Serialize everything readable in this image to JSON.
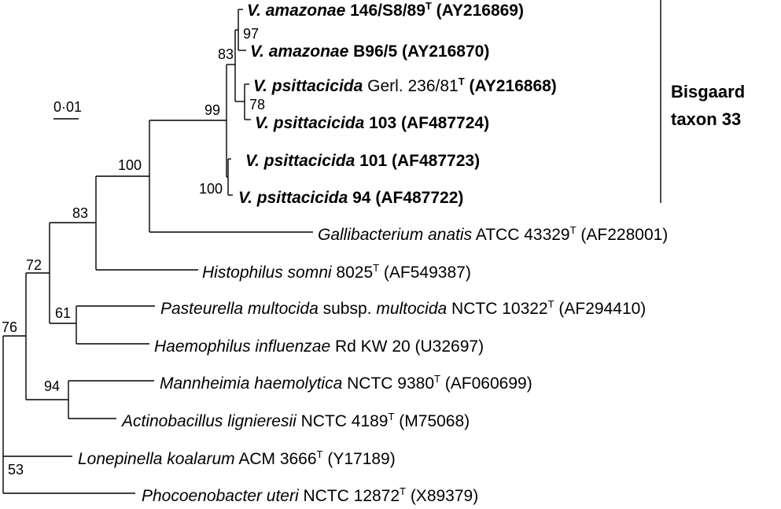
{
  "scale_bar": {
    "label": "0·01"
  },
  "clade": {
    "line1": "Bisgaard",
    "line2": "taxon 33"
  },
  "taxa": [
    {
      "id": "t1",
      "genus_species": "V. amazonae",
      "strain": " 146/S8/89",
      "sup": "T",
      "accession": " (AY216869)",
      "bold": true
    },
    {
      "id": "t2",
      "genus_species": "V. amazonae",
      "strain": " B96/5",
      "sup": "",
      "accession": " (AY216870)",
      "bold": true
    },
    {
      "id": "t3",
      "genus_species": "V. psittacicida",
      "strain": " Gerl. 236/81",
      "sup": "T",
      "accession": " (AY216868)",
      "bold": true,
      "strain_regular": true
    },
    {
      "id": "t4",
      "genus_species": "V. psittacicida",
      "strain": " 103",
      "sup": "",
      "accession": " (AF487724)",
      "bold": true
    },
    {
      "id": "t5",
      "genus_species": "V. psittacicida",
      "strain": " 101",
      "sup": "",
      "accession": " (AF487723)",
      "bold": true
    },
    {
      "id": "t6",
      "genus_species": "V. psittacicida",
      "strain": " 94",
      "sup": "",
      "accession": " (AF487722)",
      "bold": true
    },
    {
      "id": "t7",
      "genus_species": "Gallibacterium anatis",
      "strain": " ATCC 43329",
      "sup": "T",
      "accession": " (AF228001)",
      "bold": false
    },
    {
      "id": "t8",
      "genus_species": "Histophilus somni",
      "strain": " 8025",
      "sup": "T",
      "accession": " (AF549387)",
      "bold": false
    },
    {
      "id": "t9",
      "genus_species": "Pasteurella multocida",
      "strain": " subsp. ",
      "strain_italic": "multocida",
      "strain2": " NCTC 10322",
      "sup": "T",
      "accession": " (AF294410)",
      "bold": false
    },
    {
      "id": "t10",
      "genus_species": "Haemophilus influenzae",
      "strain": " Rd KW 20",
      "sup": "",
      "accession": " (U32697)",
      "bold": false
    },
    {
      "id": "t11",
      "genus_species": "Mannheimia haemolytica",
      "strain": " NCTC 9380",
      "sup": "T",
      "accession": " (AF060699)",
      "bold": false
    },
    {
      "id": "t12",
      "genus_species": "Actinobacillus lignieresii",
      "strain": " NCTC 4189",
      "sup": "T",
      "accession": " (M75068)",
      "bold": false
    },
    {
      "id": "t13",
      "genus_species": "Lonepinella koalarum",
      "strain": " ACM 3666",
      "sup": "T",
      "accession": " (Y17189)",
      "bold": false
    },
    {
      "id": "t14",
      "genus_species": "Phocoenobacter uteri",
      "strain": " NCTC 12872",
      "sup": "T",
      "accession": " (X89379)",
      "bold": false
    }
  ],
  "bootstraps": [
    "97",
    "83",
    "78",
    "99",
    "100",
    "100",
    "83",
    "72",
    "61",
    "76",
    "94",
    "53"
  ]
}
